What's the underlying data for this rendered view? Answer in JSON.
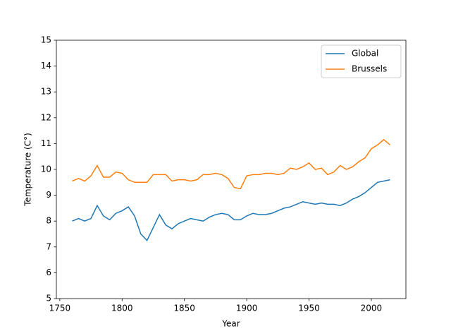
{
  "chart_data": {
    "type": "line",
    "xlabel": "Year",
    "ylabel": "Temperature (C°)",
    "x": [
      1760,
      1765,
      1770,
      1775,
      1780,
      1785,
      1790,
      1795,
      1800,
      1805,
      1810,
      1815,
      1820,
      1825,
      1830,
      1835,
      1840,
      1845,
      1850,
      1855,
      1860,
      1865,
      1870,
      1875,
      1880,
      1885,
      1890,
      1895,
      1900,
      1905,
      1910,
      1915,
      1920,
      1925,
      1930,
      1935,
      1940,
      1945,
      1950,
      1955,
      1960,
      1965,
      1970,
      1975,
      1980,
      1985,
      1990,
      1995,
      2000,
      2005,
      2010,
      2015
    ],
    "series": [
      {
        "name": "Global",
        "color": "#1f77b4",
        "values": [
          8.0,
          8.1,
          8.0,
          8.1,
          8.6,
          8.2,
          8.05,
          8.3,
          8.4,
          8.55,
          8.2,
          7.5,
          7.25,
          7.75,
          8.25,
          7.85,
          7.7,
          7.9,
          8.0,
          8.1,
          8.05,
          8.0,
          8.15,
          8.25,
          8.3,
          8.25,
          8.05,
          8.05,
          8.2,
          8.3,
          8.25,
          8.25,
          8.3,
          8.4,
          8.5,
          8.55,
          8.65,
          8.75,
          8.7,
          8.65,
          8.7,
          8.65,
          8.65,
          8.6,
          8.7,
          8.85,
          8.95,
          9.1,
          9.3,
          9.5,
          9.55,
          9.6
        ]
      },
      {
        "name": "Brussels",
        "color": "#ff7f0e",
        "values": [
          9.55,
          9.65,
          9.55,
          9.75,
          10.15,
          9.7,
          9.7,
          9.9,
          9.85,
          9.6,
          9.5,
          9.5,
          9.5,
          9.8,
          9.8,
          9.8,
          9.55,
          9.6,
          9.6,
          9.55,
          9.6,
          9.8,
          9.8,
          9.85,
          9.8,
          9.65,
          9.3,
          9.25,
          9.75,
          9.8,
          9.8,
          9.85,
          9.85,
          9.8,
          9.85,
          10.05,
          10.0,
          10.1,
          10.25,
          10.0,
          10.05,
          9.8,
          9.9,
          10.15,
          10.0,
          10.1,
          10.3,
          10.45,
          10.8,
          10.95,
          11.15,
          10.95
        ]
      }
    ],
    "xlim": [
      1747.25,
      2027.75
    ],
    "xticks": [
      1750,
      1800,
      1850,
      1900,
      1950,
      2000
    ],
    "ylim": [
      5,
      15
    ],
    "yticks": [
      5,
      6,
      7,
      8,
      9,
      10,
      11,
      12,
      13,
      14,
      15
    ],
    "legend": "upper right"
  }
}
